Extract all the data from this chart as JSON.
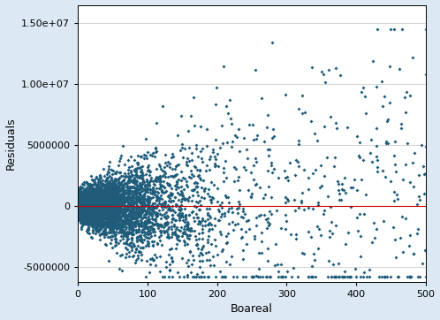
{
  "title": "",
  "xlabel": "Boareal",
  "ylabel": "Residuals",
  "xlim": [
    0,
    500
  ],
  "ylim": [
    -6000000,
    16000000
  ],
  "xticks": [
    0,
    100,
    200,
    300,
    400,
    500
  ],
  "yticks": [
    -5000000,
    0,
    5000000,
    10000000,
    15000000
  ],
  "dot_color": "#1f5c7a",
  "line_color": "#cc0000",
  "background_color": "#dce9f5",
  "plot_background": "#ffffff",
  "marker": "D",
  "marker_size": 4,
  "seed": 42,
  "n_points": 5000
}
